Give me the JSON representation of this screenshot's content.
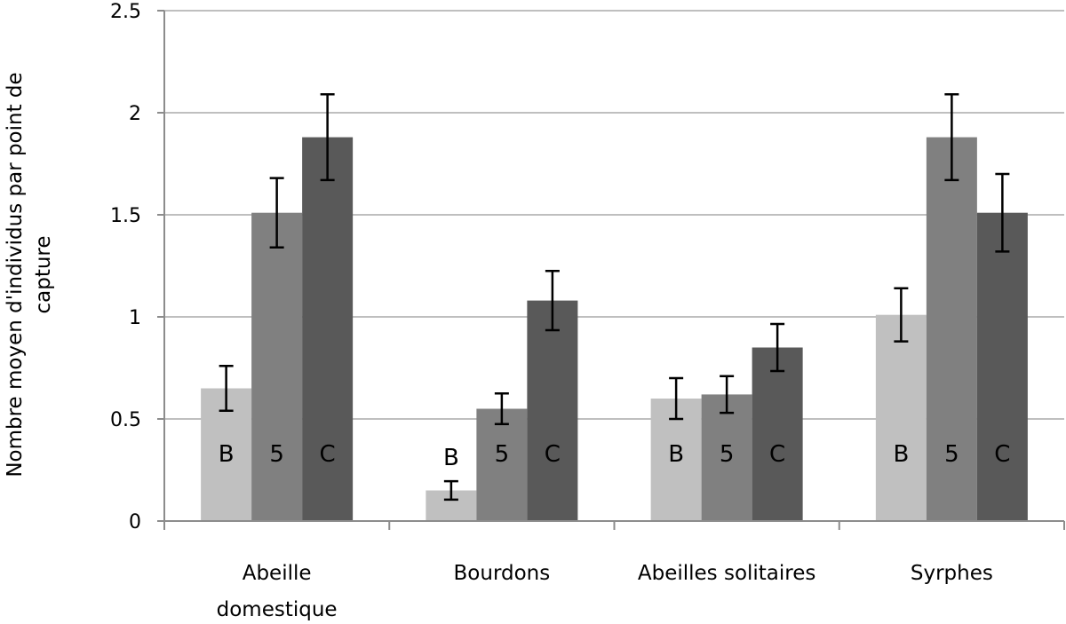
{
  "chart_data": {
    "type": "bar",
    "title": "",
    "xlabel": "",
    "ylabel": [
      "Nombre moyen d'individus par point de",
      "capture"
    ],
    "ylim": [
      0,
      2.5
    ],
    "yticks": [
      0,
      0.5,
      1,
      1.5,
      2,
      2.5
    ],
    "ytick_labels": [
      "0",
      "0.5",
      "1",
      "1.5",
      "2",
      "2.5"
    ],
    "grid": true,
    "categories": [
      [
        "Abeille",
        "domestique"
      ],
      [
        "Bourdons"
      ],
      [
        "Abeilles solitaires"
      ],
      [
        "Syrphes"
      ]
    ],
    "series": [
      {
        "bar_label": "B",
        "color": "#c0c0c0",
        "values": [
          0.65,
          0.15,
          0.6,
          1.01
        ],
        "errors": [
          0.11,
          0.045,
          0.1,
          0.13
        ]
      },
      {
        "bar_label": "5",
        "color": "#808080",
        "values": [
          1.51,
          0.55,
          0.62,
          1.88
        ],
        "errors": [
          0.17,
          0.075,
          0.09,
          0.21
        ]
      },
      {
        "bar_label": "C",
        "color": "#595959",
        "values": [
          1.88,
          1.08,
          0.85,
          1.51
        ],
        "errors": [
          0.21,
          0.145,
          0.115,
          0.19
        ]
      }
    ]
  }
}
